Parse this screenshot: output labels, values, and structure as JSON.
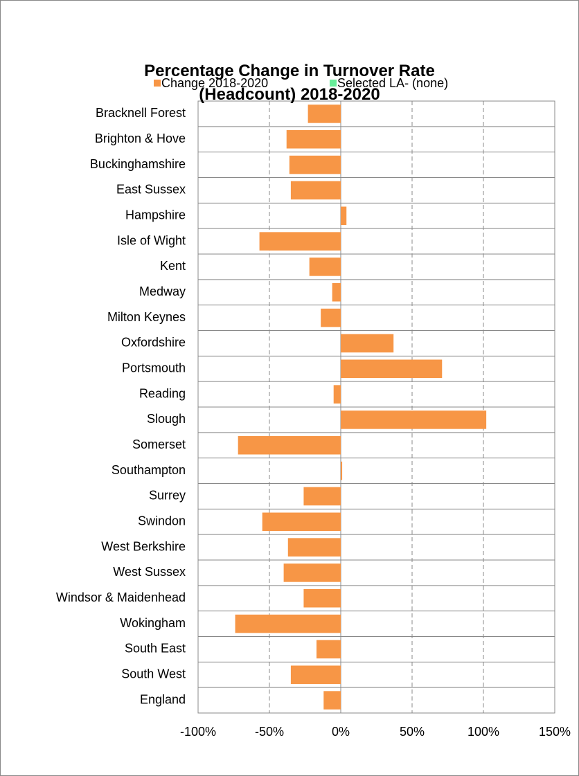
{
  "chart_data": {
    "type": "bar",
    "orientation": "horizontal",
    "title": "Percentage Change in Turnover Rate (Headcount) 2018-2020",
    "categories": [
      "Bracknell Forest",
      "Brighton & Hove",
      "Buckinghamshire",
      "East Sussex",
      "Hampshire",
      "Isle of Wight",
      "Kent",
      "Medway",
      "Milton Keynes",
      "Oxfordshire",
      "Portsmouth",
      "Reading",
      "Slough",
      "Somerset",
      "Southampton",
      "Surrey",
      "Swindon",
      "West Berkshire",
      "West Sussex",
      "Windsor & Maidenhead",
      "Wokingham",
      "South East",
      "South West",
      "England"
    ],
    "series": [
      {
        "name": "Change 2018-2020",
        "color": "#f79646",
        "values": [
          -23,
          -38,
          -36,
          -35,
          4,
          -57,
          -22,
          -6,
          -14,
          37,
          71,
          -5,
          102,
          -72,
          1,
          -26,
          -55,
          -37,
          -40,
          -26,
          -74,
          -17,
          -35,
          -12
        ]
      },
      {
        "name": "Selected LA- (none)",
        "color": "#66ee99",
        "values": [
          null,
          null,
          null,
          null,
          null,
          null,
          null,
          null,
          null,
          null,
          null,
          null,
          null,
          null,
          null,
          null,
          null,
          null,
          null,
          null,
          null,
          null,
          null,
          null
        ]
      }
    ],
    "xlim": [
      -100,
      150
    ],
    "xticks": [
      {
        "value": -100,
        "label": "-100%"
      },
      {
        "value": -50,
        "label": "-50%"
      },
      {
        "value": 0,
        "label": "0%"
      },
      {
        "value": 50,
        "label": "50%"
      },
      {
        "value": 100,
        "label": "100%"
      },
      {
        "value": 150,
        "label": "150%"
      }
    ],
    "grid": true,
    "legend": "top"
  }
}
